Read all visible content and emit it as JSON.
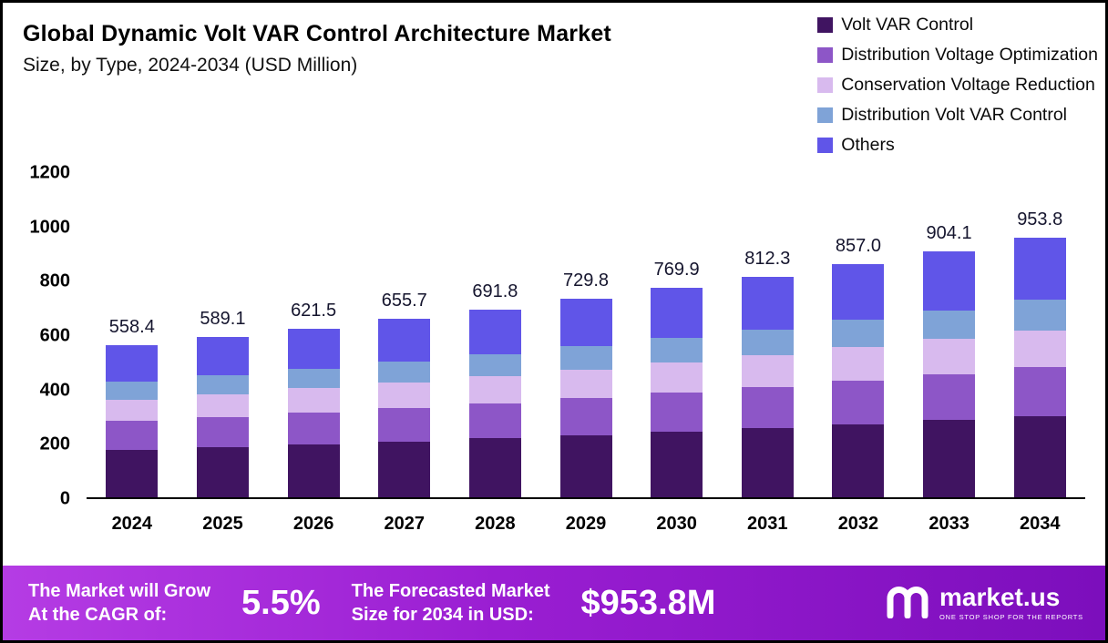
{
  "title": {
    "line1": "Global Dynamic Volt VAR Control Architecture Market",
    "line2": "Size, by Type, 2024-2034 (USD Million)"
  },
  "chart_data": {
    "type": "bar",
    "stacked": true,
    "categories": [
      "2024",
      "2025",
      "2026",
      "2027",
      "2028",
      "2029",
      "2030",
      "2031",
      "2032",
      "2033",
      "2034"
    ],
    "totals": [
      "558.4",
      "589.1",
      "621.5",
      "655.7",
      "691.8",
      "729.8",
      "769.9",
      "812.3",
      "857.0",
      "904.1",
      "953.8"
    ],
    "series": [
      {
        "name": "Volt VAR Control",
        "color": "#401461",
        "values": [
          175.0,
          184.6,
          194.8,
          205.5,
          216.8,
          228.7,
          241.3,
          254.6,
          268.6,
          283.3,
          298.9
        ]
      },
      {
        "name": "Distribution Voltage Optimization",
        "color": "#8d56c7",
        "values": [
          105.0,
          110.8,
          116.8,
          123.3,
          130.1,
          137.2,
          144.7,
          152.7,
          161.1,
          170.0,
          179.3
        ]
      },
      {
        "name": "Conservation Voltage Reduction",
        "color": "#d8baee",
        "values": [
          80.0,
          84.4,
          89.1,
          94.0,
          99.1,
          104.6,
          110.3,
          116.4,
          122.8,
          129.6,
          136.7
        ]
      },
      {
        "name": "Distribution Volt VAR Control",
        "color": "#7fa3d7",
        "values": [
          65.0,
          68.6,
          72.3,
          76.3,
          80.5,
          84.9,
          89.6,
          94.6,
          99.8,
          105.2,
          111.0
        ]
      },
      {
        "name": "Others",
        "color": "#6055e8",
        "values": [
          133.4,
          140.7,
          148.5,
          156.6,
          165.3,
          174.4,
          184.0,
          194.0,
          204.7,
          216.0,
          227.9
        ]
      }
    ],
    "ylim": [
      0,
      1200
    ],
    "yticks": [
      0,
      200,
      400,
      600,
      800,
      1000,
      1200
    ],
    "grid": false,
    "legend_position": "top-right",
    "xlabel": "",
    "ylabel": ""
  },
  "banner": {
    "cagr_label_line1": "The Market will Grow",
    "cagr_label_line2": "At the CAGR of:",
    "cagr_value": "5.5%",
    "forecast_label_line1": "The Forecasted Market",
    "forecast_label_line2": "Size for 2034 in USD:",
    "forecast_value": "$953.8M",
    "brand": "market.us",
    "brand_tagline": "ONE STOP SHOP FOR THE REPORTS"
  }
}
